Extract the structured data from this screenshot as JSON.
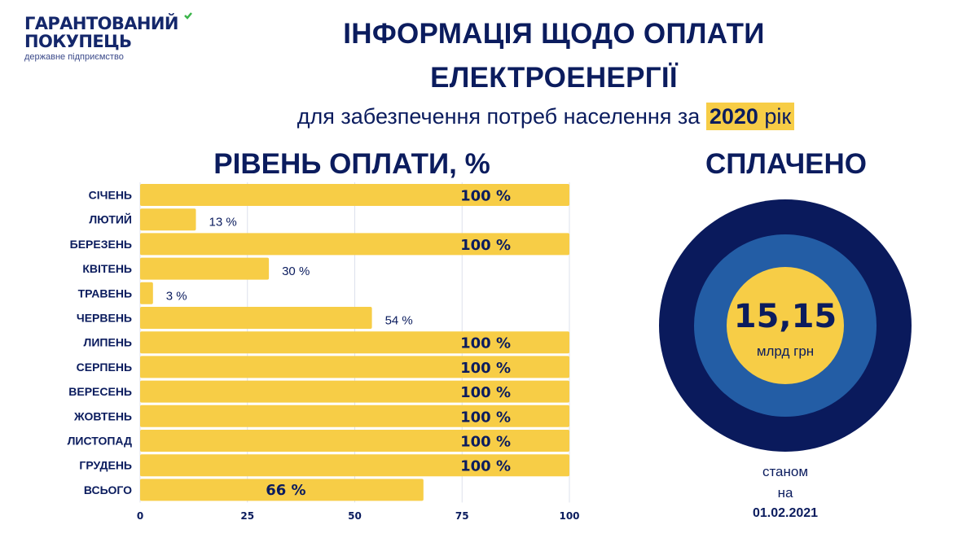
{
  "logo": {
    "line1": "ГАРАНТОВАНИЙ",
    "line2": "ПОКУПЕЦЬ",
    "line3": "державне підприємство"
  },
  "header": {
    "title_line1": "ІНФОРМАЦІЯ ЩОДО ОПЛАТИ",
    "title_line2": "ЕЛЕКТРОЕНЕРГІЇ",
    "subtitle_prefix": "для забезпечення потреб населення за",
    "subtitle_year": "2020",
    "subtitle_suffix": "рік"
  },
  "colors": {
    "navy": "#0b1c5e",
    "bar": "#f7cd46",
    "ring_outer": "#0a1a5c",
    "ring_middle": "#235da5",
    "ring_inner": "#f7cd46",
    "grid": "#dde1ec"
  },
  "chart_data": [
    {
      "type": "bar",
      "orientation": "horizontal",
      "title": "РІВЕНЬ ОПЛАТИ, %",
      "categories": [
        "СІЧЕНЬ",
        "ЛЮТИЙ",
        "БЕРЕЗЕНЬ",
        "КВІТЕНЬ",
        "ТРАВЕНЬ",
        "ЧЕРВЕНЬ",
        "ЛИПЕНЬ",
        "СЕРПЕНЬ",
        "ВЕРЕСЕНЬ",
        "ЖОВТЕНЬ",
        "ЛИСТОПАД",
        "ГРУДЕНЬ",
        "ВСЬОГО"
      ],
      "values": [
        100,
        13,
        100,
        30,
        3,
        54,
        100,
        100,
        100,
        100,
        100,
        100,
        66
      ],
      "labels": [
        "100 %",
        "13 %",
        "100 %",
        "30 %",
        "3 %",
        "54 %",
        "100 %",
        "100 %",
        "100 %",
        "100 %",
        "100 %",
        "100 %",
        "66 %"
      ],
      "xlim": [
        0,
        100
      ],
      "xticks": [
        "0",
        "25",
        "50",
        "75",
        "100"
      ],
      "grid": true,
      "xlabel": "",
      "ylabel": ""
    },
    {
      "type": "pie",
      "title": "СПЛАЧЕНО",
      "value": "15,15",
      "unit": "млрд грн",
      "note_line1": "станом",
      "note_line2": "на",
      "date": "01.02.2021"
    }
  ]
}
